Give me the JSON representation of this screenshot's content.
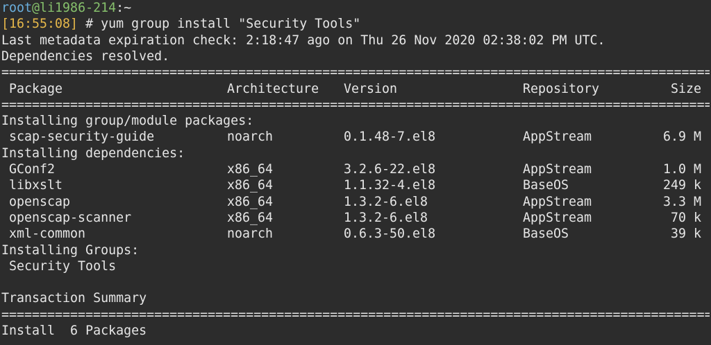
{
  "prompt": {
    "user": "root",
    "host": "@li1986-214",
    "path": ":~",
    "time": "[16:55:08]",
    "command": " # yum group install \"Security Tools\""
  },
  "colors": {
    "background": "#2c2c2c",
    "text": "#e6e6e6",
    "user": "#6aaedc",
    "host": "#86c06c",
    "time": "#e6b84a"
  },
  "output": {
    "metadata": "Last metadata expiration check: 2:18:47 ago on Thu 26 Nov 2020 02:38:02 PM UTC.",
    "resolved": "Dependencies resolved.",
    "separator": "=============================================================================================",
    "headers": [
      "Package",
      "Architecture",
      "Version",
      "Repository",
      "Size"
    ],
    "section_group": "Installing group/module packages:",
    "group_packages": [
      {
        "name": "scap-security-guide",
        "arch": "noarch",
        "version": "0.1.48-7.el8",
        "repo": "AppStream",
        "size": "6.9 M"
      }
    ],
    "section_deps": "Installing dependencies:",
    "dependencies": [
      {
        "name": "GConf2",
        "arch": "x86_64",
        "version": "3.2.6-22.el8",
        "repo": "AppStream",
        "size": "1.0 M"
      },
      {
        "name": "libxslt",
        "arch": "x86_64",
        "version": "1.1.32-4.el8",
        "repo": "BaseOS",
        "size": "249 k"
      },
      {
        "name": "openscap",
        "arch": "x86_64",
        "version": "1.3.2-6.el8",
        "repo": "AppStream",
        "size": "3.3 M"
      },
      {
        "name": "openscap-scanner",
        "arch": "x86_64",
        "version": "1.3.2-6.el8",
        "repo": "AppStream",
        "size": "70 k"
      },
      {
        "name": "xml-common",
        "arch": "noarch",
        "version": "0.6.3-50.el8",
        "repo": "BaseOS",
        "size": "39 k"
      }
    ],
    "section_groups": "Installing Groups:",
    "groups": [
      "Security Tools"
    ],
    "summary_title": "Transaction Summary",
    "install_line": "Install  6 Packages"
  }
}
